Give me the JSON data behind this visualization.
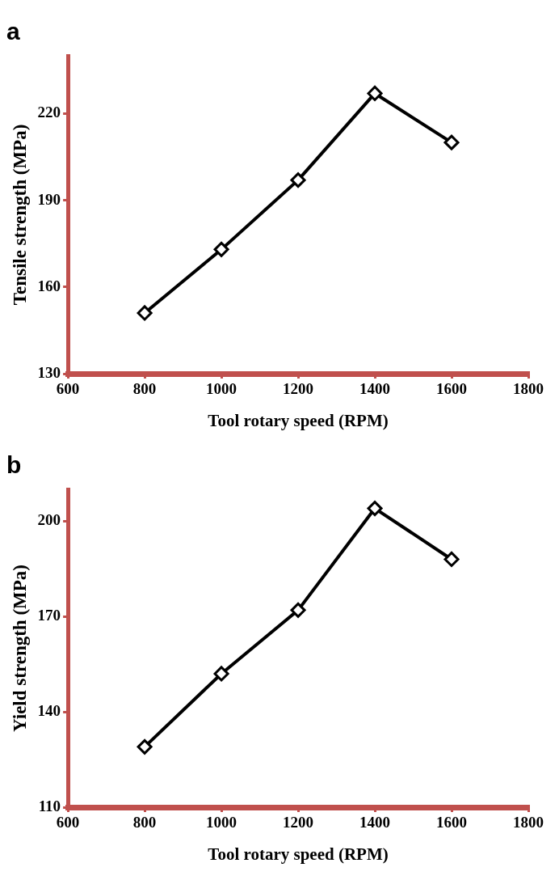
{
  "chart_data": [
    {
      "type": "line",
      "title": "a",
      "xlabel": "Tool rotary speed (RPM)",
      "ylabel": "Tensile strength (MPa)",
      "x": [
        800,
        1000,
        1200,
        1400,
        1600
      ],
      "series": [
        {
          "color": "#000000",
          "values": [
            151,
            173,
            197,
            227,
            210
          ]
        }
      ],
      "xlim": [
        600,
        1800
      ],
      "xticks": [
        600,
        800,
        1000,
        1200,
        1400,
        1600,
        1800
      ],
      "ylim": [
        130,
        240
      ],
      "yticks": [
        130,
        160,
        190,
        220
      ],
      "marker": "diamond",
      "line_style": "solid",
      "legend": false
    },
    {
      "type": "line",
      "title": "b",
      "xlabel": "Tool rotary speed (RPM)",
      "ylabel": "Yield strength (MPa)",
      "x": [
        800,
        1000,
        1200,
        1400,
        1600
      ],
      "series": [
        {
          "color": "#000000",
          "values": [
            129,
            152,
            172,
            204,
            188
          ]
        }
      ],
      "xlim": [
        600,
        1800
      ],
      "xticks": [
        600,
        800,
        1000,
        1200,
        1400,
        1600,
        1800
      ],
      "ylim": [
        110,
        210
      ],
      "yticks": [
        110,
        140,
        170,
        200
      ],
      "marker": "diamond",
      "line_style": "solid",
      "legend": false
    }
  ]
}
